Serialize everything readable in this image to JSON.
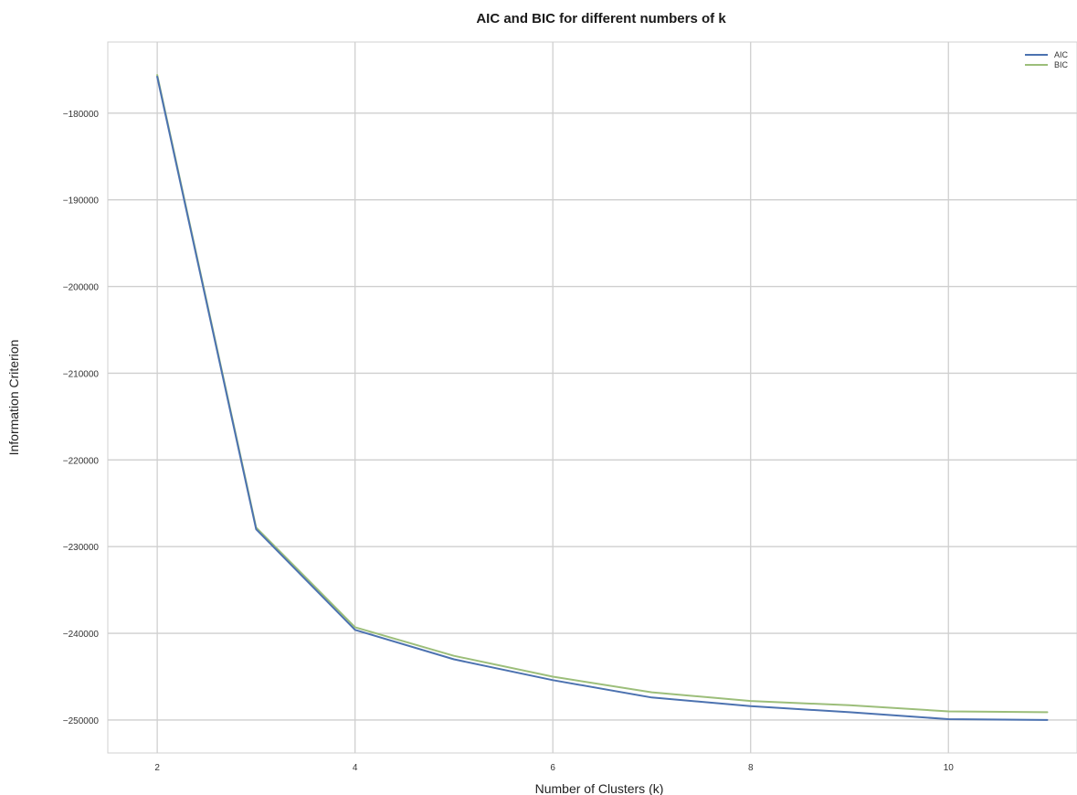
{
  "chart_data": {
    "type": "line",
    "title": "AIC and BIC for different numbers of k",
    "xlabel": "Number of Clusters (k)",
    "ylabel": "Information Criterion",
    "x": [
      2,
      3,
      4,
      5,
      6,
      7,
      8,
      9,
      10,
      11
    ],
    "xticks": [
      2,
      4,
      6,
      8,
      10
    ],
    "yticks": [
      -180000,
      -190000,
      -200000,
      -210000,
      -220000,
      -230000,
      -240000,
      -250000
    ],
    "ytick_labels": [
      "−180000",
      "−190000",
      "−200000",
      "−210000",
      "−220000",
      "−230000",
      "−240000",
      "−250000"
    ],
    "xlim": [
      1.5,
      11.3
    ],
    "ylim": [
      -253800,
      -171800
    ],
    "grid": true,
    "legend": "top-right",
    "series": [
      {
        "name": "AIC",
        "color": "#4c72b0",
        "values": [
          -175800,
          -228000,
          -239600,
          -243000,
          -245400,
          -247400,
          -248400,
          -249100,
          -249900,
          -250000
        ]
      },
      {
        "name": "BIC",
        "color": "#9cbe7a",
        "values": [
          -175600,
          -227800,
          -239300,
          -242600,
          -245000,
          -246800,
          -247800,
          -248300,
          -249000,
          -249100
        ]
      }
    ]
  }
}
